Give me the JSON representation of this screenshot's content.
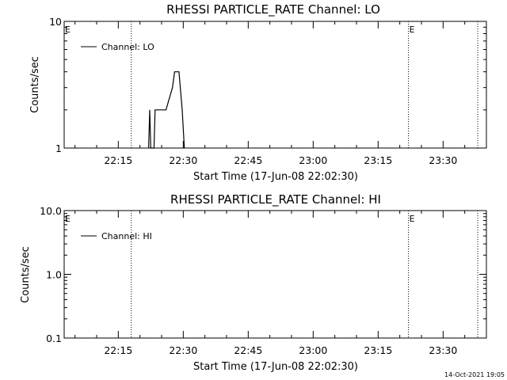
{
  "chart_data": [
    {
      "type": "line",
      "title": "RHESSI PARTICLE_RATE Channel: LO",
      "xlabel": "Start Time (17-Jun-08 22:02:30)",
      "ylabel": "Counts/sec",
      "y_scale": "log",
      "ylim": [
        1,
        10
      ],
      "y_ticks": [
        1,
        10
      ],
      "y_tick_labels": [
        "1",
        "10"
      ],
      "x_range": [
        "22:02:30",
        "23:40:00"
      ],
      "x_ticks": [
        "22:15",
        "22:30",
        "22:45",
        "23:00",
        "23:15",
        "23:30"
      ],
      "event_lines": [
        "22:18:00",
        "23:22:00",
        "23:38:00"
      ],
      "event_markers": [
        {
          "time": "22:02:30",
          "label": "E"
        },
        {
          "time": "23:22:00",
          "label": "E"
        }
      ],
      "legend_placement": "top-left",
      "series": [
        {
          "name": "Channel: LO",
          "x": [
            "22:22:00",
            "22:22:15",
            "22:22:30",
            "22:22:45",
            "22:23:15",
            "22:23:30",
            "22:26:00",
            "22:27:30",
            "22:28:00",
            "22:29:00",
            "22:29:45",
            "22:30:15"
          ],
          "values": [
            1,
            2,
            1,
            1,
            1,
            2,
            2,
            3,
            4,
            4,
            2,
            1
          ]
        }
      ]
    },
    {
      "type": "line",
      "title": "RHESSI PARTICLE_RATE Channel: HI",
      "xlabel": "Start Time (17-Jun-08 22:02:30)",
      "ylabel": "Counts/sec",
      "y_scale": "log",
      "ylim": [
        0.1,
        10
      ],
      "y_ticks": [
        0.1,
        1,
        10
      ],
      "y_tick_labels": [
        "0.1",
        "1.0",
        "10.0"
      ],
      "x_range": [
        "22:02:30",
        "23:40:00"
      ],
      "x_ticks": [
        "22:15",
        "22:30",
        "22:45",
        "23:00",
        "23:15",
        "23:30"
      ],
      "event_lines": [
        "22:18:00",
        "23:22:00",
        "23:38:00"
      ],
      "event_markers": [
        {
          "time": "22:02:30",
          "label": "E"
        },
        {
          "time": "23:22:00",
          "label": "E"
        }
      ],
      "legend_placement": "top-left",
      "series": [
        {
          "name": "Channel: HI",
          "x": [],
          "values": []
        }
      ]
    }
  ],
  "timestamp": "14-Oct-2021 19:05"
}
